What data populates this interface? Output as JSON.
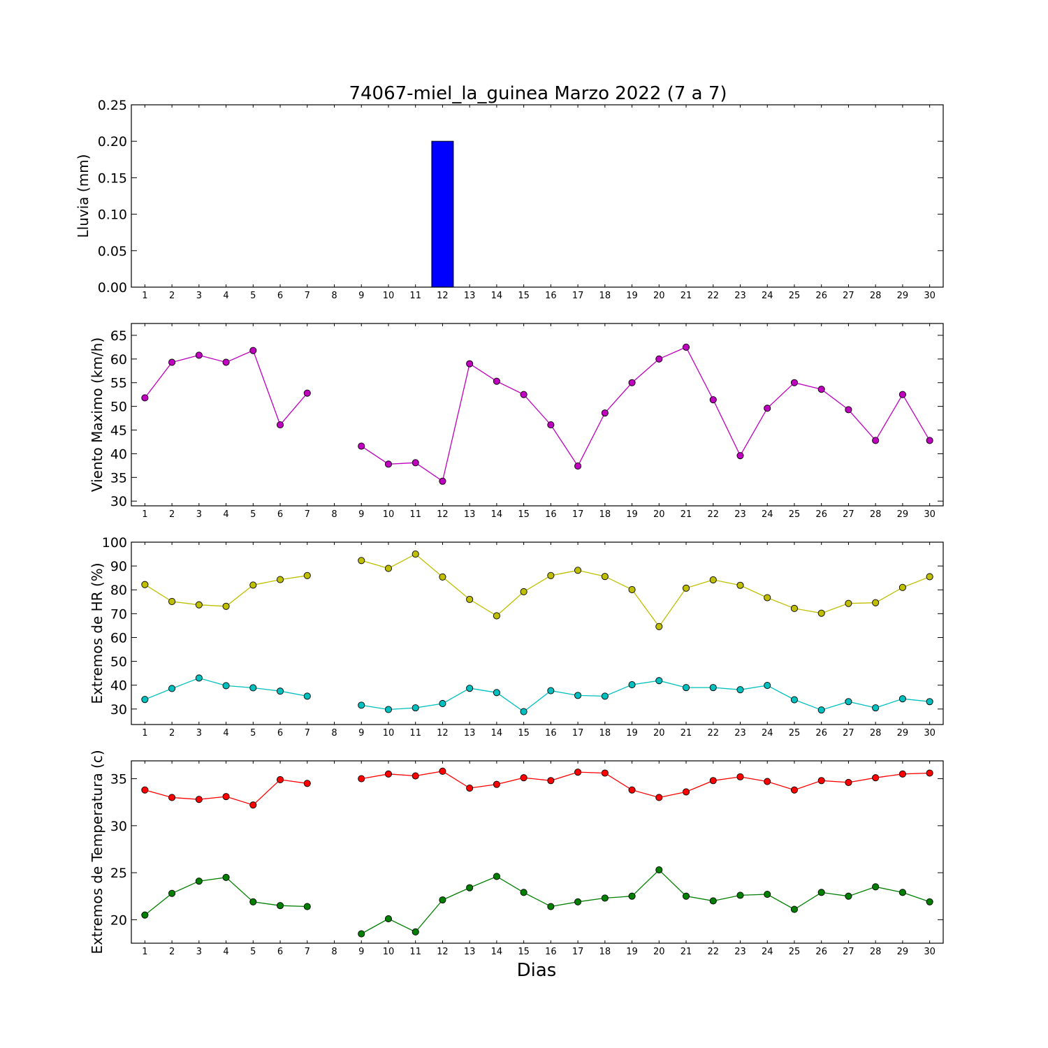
{
  "figure": {
    "title": "74067-miel_la_guinea Marzo 2022  (7 a 7)",
    "xlabel": "Dias"
  },
  "chart_data": [
    {
      "type": "bar",
      "name": "lluvia",
      "ylabel": "Lluvia (mm)",
      "xlim": [
        0.5,
        30.5
      ],
      "ylim": [
        0,
        0.25
      ],
      "yticks": [
        0.0,
        0.05,
        0.1,
        0.15,
        0.2,
        0.25
      ],
      "ytick_labels": [
        "0.00",
        "0.05",
        "0.10",
        "0.15",
        "0.20",
        "0.25"
      ],
      "x": [
        1,
        2,
        3,
        4,
        5,
        6,
        7,
        8,
        9,
        10,
        11,
        12,
        13,
        14,
        15,
        16,
        17,
        18,
        19,
        20,
        21,
        22,
        23,
        24,
        25,
        26,
        27,
        28,
        29,
        30
      ],
      "x_tick_labels": [
        "1",
        "2",
        "3",
        "4",
        "5",
        "6",
        "7",
        "8",
        "9",
        "10",
        "11",
        "12",
        "13",
        "14",
        "15",
        "16",
        "17",
        "18",
        "19",
        "20",
        "21",
        "22",
        "23",
        "24",
        "25",
        "26",
        "27",
        "28",
        "29",
        "30"
      ],
      "series": [
        {
          "color": "#0000ff",
          "values": [
            0,
            0,
            0,
            0,
            0,
            0,
            0,
            null,
            0,
            0,
            0,
            0.2,
            0,
            0,
            0,
            0,
            0,
            0,
            0,
            0,
            0,
            0,
            0,
            0,
            0,
            0,
            0,
            0,
            0,
            0
          ]
        }
      ]
    },
    {
      "type": "line",
      "name": "viento",
      "ylabel": "Viento Maximo (km/h)",
      "xlim": [
        0.5,
        30.5
      ],
      "ylim": [
        29,
        67.5
      ],
      "yticks": [
        30,
        35,
        40,
        45,
        50,
        55,
        60,
        65
      ],
      "ytick_labels": [
        "30",
        "35",
        "40",
        "45",
        "50",
        "55",
        "60",
        "65"
      ],
      "x": [
        1,
        2,
        3,
        4,
        5,
        6,
        7,
        8,
        9,
        10,
        11,
        12,
        13,
        14,
        15,
        16,
        17,
        18,
        19,
        20,
        21,
        22,
        23,
        24,
        25,
        26,
        27,
        28,
        29,
        30
      ],
      "x_tick_labels": [
        "1",
        "2",
        "3",
        "4",
        "5",
        "6",
        "7",
        "8",
        "9",
        "10",
        "11",
        "12",
        "13",
        "14",
        "15",
        "16",
        "17",
        "18",
        "19",
        "20",
        "21",
        "22",
        "23",
        "24",
        "25",
        "26",
        "27",
        "28",
        "29",
        "30"
      ],
      "series": [
        {
          "color": "#bf00bf",
          "values": [
            51.8,
            59.3,
            60.8,
            59.3,
            61.8,
            46.1,
            52.8,
            null,
            41.6,
            37.8,
            38.1,
            34.2,
            59.0,
            55.3,
            52.5,
            46.1,
            37.4,
            48.6,
            55.0,
            60.0,
            62.5,
            51.4,
            39.6,
            49.6,
            55.0,
            53.6,
            49.3,
            42.8,
            52.5,
            42.8
          ]
        }
      ]
    },
    {
      "type": "line",
      "name": "hr",
      "ylabel": "Extremos de HR (%)",
      "xlim": [
        0.5,
        30.5
      ],
      "ylim": [
        23.5,
        100
      ],
      "yticks": [
        30,
        40,
        50,
        60,
        70,
        80,
        90,
        100
      ],
      "ytick_labels": [
        "30",
        "40",
        "50",
        "60",
        "70",
        "80",
        "90",
        "100"
      ],
      "x": [
        1,
        2,
        3,
        4,
        5,
        6,
        7,
        8,
        9,
        10,
        11,
        12,
        13,
        14,
        15,
        16,
        17,
        18,
        19,
        20,
        21,
        22,
        23,
        24,
        25,
        26,
        27,
        28,
        29,
        30
      ],
      "x_tick_labels": [
        "1",
        "2",
        "3",
        "4",
        "5",
        "6",
        "7",
        "8",
        "9",
        "10",
        "11",
        "12",
        "13",
        "14",
        "15",
        "16",
        "17",
        "18",
        "19",
        "20",
        "21",
        "22",
        "23",
        "24",
        "25",
        "26",
        "27",
        "28",
        "29",
        "30"
      ],
      "series": [
        {
          "color": "#bfbf00",
          "values": [
            82.2,
            75.1,
            73.7,
            73.1,
            82.0,
            84.3,
            86.0,
            null,
            92.3,
            89.0,
            95.0,
            85.4,
            76.0,
            69.1,
            79.2,
            86.0,
            88.2,
            85.6,
            80.1,
            64.6,
            80.7,
            84.2,
            81.9,
            76.7,
            72.2,
            70.2,
            74.3,
            74.6,
            81.0,
            85.5
          ]
        },
        {
          "color": "#00bfbf",
          "values": [
            34.0,
            38.6,
            43.0,
            39.8,
            38.9,
            37.5,
            35.4,
            null,
            31.6,
            29.8,
            30.5,
            32.3,
            38.7,
            36.9,
            28.9,
            37.7,
            35.7,
            35.4,
            40.2,
            41.9,
            39.0,
            39.0,
            38.1,
            39.9,
            33.9,
            29.6,
            33.1,
            30.5,
            34.3,
            33.1
          ]
        }
      ]
    },
    {
      "type": "line",
      "name": "temperatura",
      "ylabel": "Extremos de Temperatura (c)",
      "xlim": [
        0.5,
        30.5
      ],
      "ylim": [
        17.5,
        36.9
      ],
      "yticks": [
        20,
        25,
        30,
        35
      ],
      "ytick_labels": [
        "20",
        "25",
        "30",
        "35"
      ],
      "x": [
        1,
        2,
        3,
        4,
        5,
        6,
        7,
        8,
        9,
        10,
        11,
        12,
        13,
        14,
        15,
        16,
        17,
        18,
        19,
        20,
        21,
        22,
        23,
        24,
        25,
        26,
        27,
        28,
        29,
        30
      ],
      "x_tick_labels": [
        "1",
        "2",
        "3",
        "4",
        "5",
        "6",
        "7",
        "8",
        "9",
        "10",
        "11",
        "12",
        "13",
        "14",
        "15",
        "16",
        "17",
        "18",
        "19",
        "20",
        "21",
        "22",
        "23",
        "24",
        "25",
        "26",
        "27",
        "28",
        "29",
        "30"
      ],
      "series": [
        {
          "color": "#ff0000",
          "values": [
            33.8,
            33.0,
            32.8,
            33.1,
            32.2,
            34.9,
            34.5,
            null,
            35.0,
            35.5,
            35.3,
            35.8,
            34.0,
            34.4,
            35.1,
            34.8,
            35.7,
            35.6,
            33.8,
            33.0,
            33.6,
            34.8,
            35.2,
            34.7,
            33.8,
            34.8,
            34.6,
            35.1,
            35.5,
            35.6
          ]
        },
        {
          "color": "#007f00",
          "values": [
            20.5,
            22.8,
            24.1,
            24.5,
            21.9,
            21.5,
            21.4,
            null,
            18.5,
            20.1,
            18.7,
            22.1,
            23.4,
            24.6,
            22.9,
            21.4,
            21.9,
            22.3,
            22.5,
            25.3,
            22.5,
            22.0,
            22.6,
            22.7,
            21.1,
            22.9,
            22.5,
            23.5,
            22.9,
            21.9
          ]
        }
      ]
    }
  ]
}
